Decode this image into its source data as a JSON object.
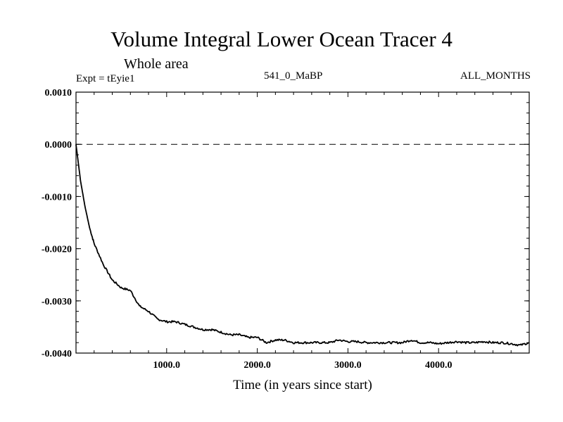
{
  "header": {
    "title": "Volume Integral Lower Ocean Tracer 4",
    "subtitle": "Whole area",
    "experiment": "Expt = tEyie1",
    "period": "541_0_MaBP",
    "months": "ALL_MONTHS"
  },
  "chart_data": {
    "type": "line",
    "title": "Volume Integral Lower Ocean Tracer 4",
    "xlabel": "Time (in years since start)",
    "ylabel": "",
    "xlim": [
      0,
      5000
    ],
    "ylim": [
      -0.004,
      0.001
    ],
    "x_ticks": [
      1000,
      2000,
      3000,
      4000
    ],
    "x_tick_labels": [
      "1000.0",
      "2000.0",
      "3000.0",
      "4000.0"
    ],
    "y_ticks": [
      0.001,
      0.0,
      -0.001,
      -0.002,
      -0.003,
      -0.004
    ],
    "y_tick_labels": [
      "0.0010",
      "0.0000",
      "-0.0010",
      "-0.0020",
      "-0.0030",
      "-0.0040"
    ],
    "reference_line": {
      "y": 0.0,
      "style": "dashed"
    },
    "series": [
      {
        "name": "Volume Integral Lower Ocean Tracer 4",
        "x": [
          0,
          50,
          100,
          150,
          200,
          300,
          400,
          500,
          600,
          700,
          800,
          900,
          1000,
          1100,
          1200,
          1300,
          1400,
          1500,
          1600,
          1700,
          1800,
          1900,
          2000,
          2100,
          2200,
          2300,
          2400,
          2500,
          2600,
          2700,
          2800,
          2900,
          3000,
          3100,
          3200,
          3300,
          3400,
          3500,
          3600,
          3700,
          3800,
          3900,
          4000,
          4100,
          4200,
          4300,
          4400,
          4500,
          4600,
          4700,
          4800,
          4900,
          5000
        ],
        "y": [
          0.0,
          -0.0007,
          -0.0012,
          -0.0016,
          -0.0019,
          -0.0023,
          -0.0026,
          -0.00275,
          -0.0028,
          -0.0031,
          -0.0032,
          -0.00335,
          -0.0034,
          -0.0034,
          -0.00345,
          -0.0035,
          -0.00355,
          -0.00355,
          -0.0036,
          -0.00365,
          -0.00365,
          -0.0037,
          -0.0037,
          -0.0038,
          -0.00375,
          -0.00375,
          -0.0038,
          -0.0038,
          -0.0038,
          -0.0038,
          -0.0038,
          -0.00375,
          -0.00378,
          -0.00378,
          -0.0038,
          -0.0038,
          -0.0038,
          -0.0038,
          -0.0038,
          -0.00375,
          -0.0038,
          -0.0038,
          -0.00382,
          -0.0038,
          -0.00378,
          -0.0038,
          -0.0038,
          -0.00378,
          -0.0038,
          -0.0038,
          -0.00382,
          -0.00385,
          -0.0038
        ]
      }
    ]
  }
}
